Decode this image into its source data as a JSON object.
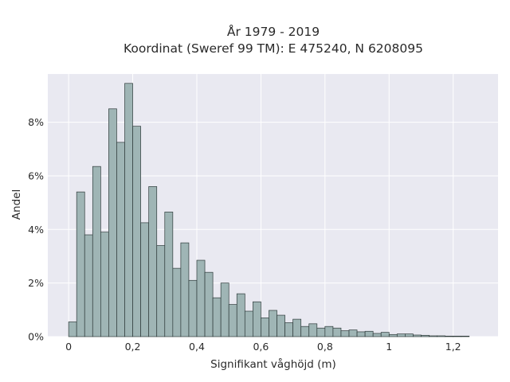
{
  "chart_data": {
    "type": "bar",
    "title": "År 1979 - 2019",
    "subtitle": "Koordinat (Sweref 99 TM): E 475240, N 6208095",
    "xlabel": "Signifikant våghöjd (m)",
    "ylabel": "Andel",
    "xlim": [
      -0.065,
      1.34
    ],
    "ylim": [
      0,
      9.8
    ],
    "x_ticks": [
      0,
      0.2,
      0.4,
      0.6,
      0.8,
      1,
      1.2
    ],
    "x_tick_labels": [
      "0",
      "0,2",
      "0,4",
      "0,6",
      "0,8",
      "1",
      "1,2"
    ],
    "y_ticks": [
      0,
      2,
      4,
      6,
      8
    ],
    "y_tick_labels": [
      "0%",
      "2%",
      "4%",
      "6%",
      "8%"
    ],
    "bin_width": 0.025,
    "bin_start": 0,
    "values": [
      0.55,
      5.4,
      3.8,
      6.35,
      3.9,
      8.5,
      7.25,
      9.45,
      7.85,
      4.25,
      5.6,
      3.4,
      4.65,
      2.55,
      3.5,
      2.1,
      2.85,
      2.4,
      1.45,
      2.0,
      1.2,
      1.6,
      0.95,
      1.3,
      0.7,
      0.98,
      0.8,
      0.52,
      0.65,
      0.38,
      0.48,
      0.32,
      0.38,
      0.32,
      0.22,
      0.25,
      0.18,
      0.2,
      0.12,
      0.16,
      0.08,
      0.1,
      0.1,
      0.06,
      0.05,
      0.03,
      0.03,
      0.02,
      0.02,
      0.02
    ],
    "grid": true,
    "legend": "none",
    "colors": {
      "bar_fill": "#9fb5b5",
      "bar_edge": "#2f3b3b",
      "plot_background": "#e9e9f1",
      "grid": "#ffffff"
    }
  }
}
